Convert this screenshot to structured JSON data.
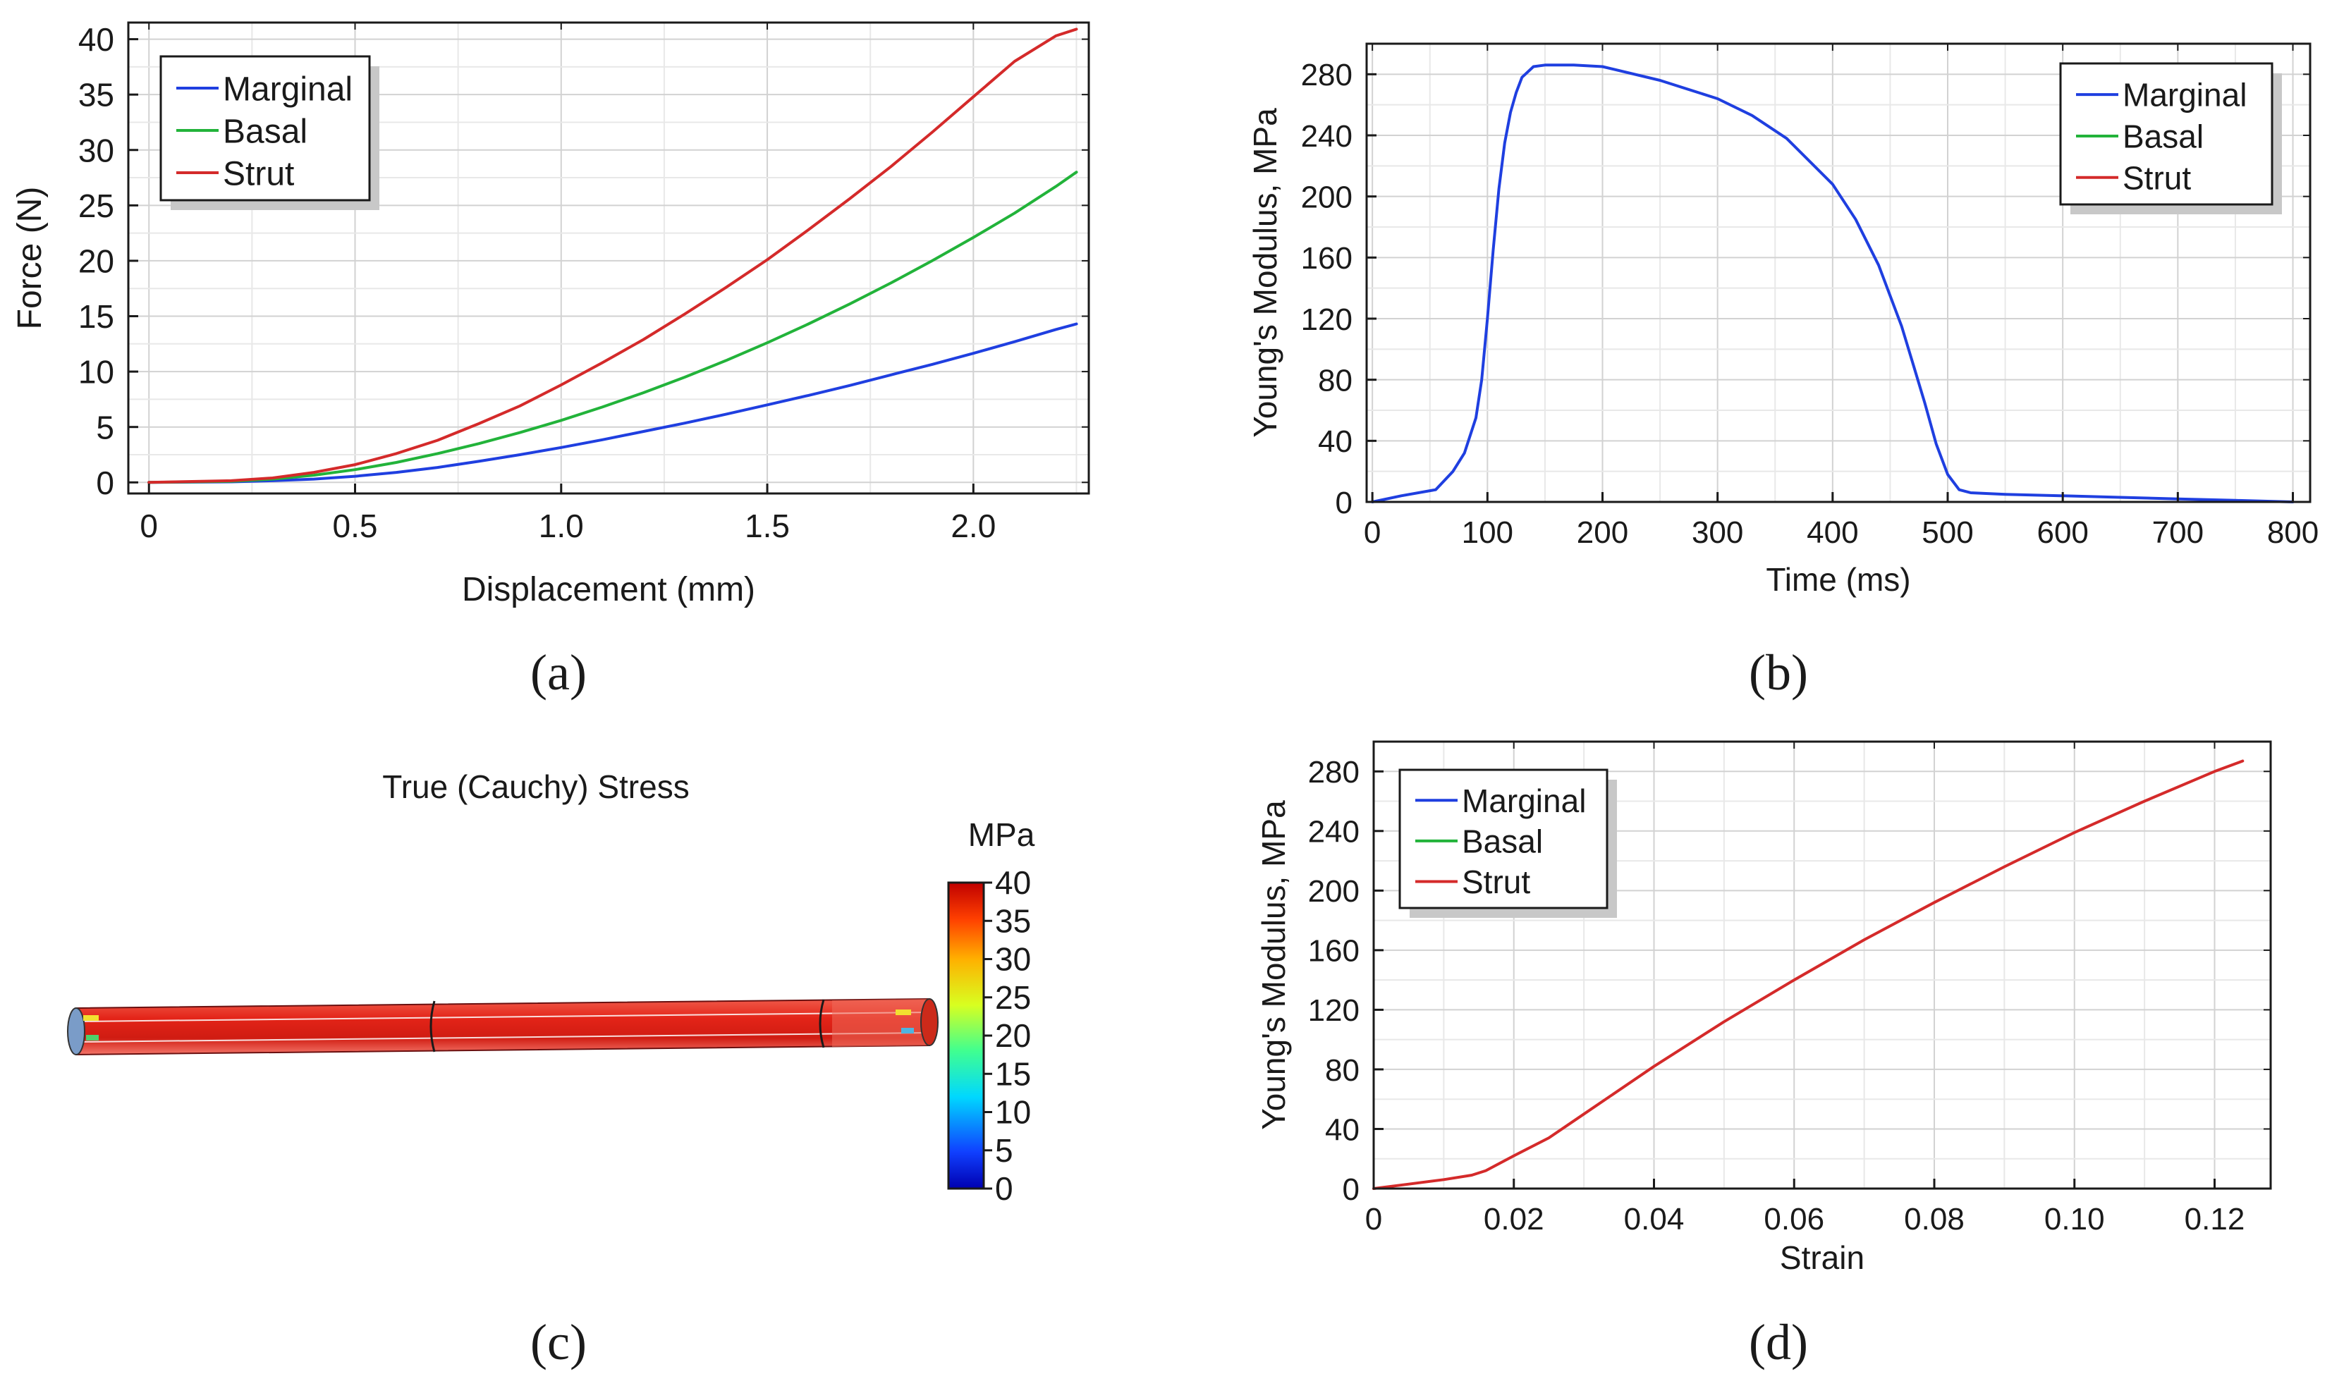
{
  "chart_data": [
    {
      "panel": "(a)",
      "type": "line",
      "title": "",
      "xlabel": "Displacement (mm)",
      "ylabel": "Force (N)",
      "xlim": [
        -0.05,
        2.28
      ],
      "ylim": [
        -1,
        41.5
      ],
      "xticks": [
        0,
        0.5,
        1.0,
        1.5,
        2.0
      ],
      "xtick_labels": [
        "0",
        "0.5",
        "1.0",
        "1.5",
        "2.0"
      ],
      "yticks": [
        0,
        5,
        10,
        15,
        20,
        25,
        30,
        35,
        40
      ],
      "ytick_labels": [
        "0",
        "5",
        "10",
        "15",
        "20",
        "25",
        "30",
        "35",
        "40"
      ],
      "grid": true,
      "legend": [
        "Marginal",
        "Basal",
        "Strut"
      ],
      "legend_position": "top-left",
      "series": [
        {
          "name": "Marginal",
          "color": "#1f3fe0",
          "x": [
            0,
            0.2,
            0.3,
            0.4,
            0.5,
            0.6,
            0.7,
            0.8,
            0.9,
            1.0,
            1.1,
            1.2,
            1.3,
            1.4,
            1.5,
            1.6,
            1.7,
            1.8,
            1.9,
            2.0,
            2.1,
            2.2,
            2.25
          ],
          "y": [
            0,
            0.05,
            0.15,
            0.3,
            0.55,
            0.9,
            1.35,
            1.9,
            2.5,
            3.15,
            3.85,
            4.6,
            5.35,
            6.15,
            7.0,
            7.85,
            8.75,
            9.7,
            10.65,
            11.65,
            12.7,
            13.8,
            14.3
          ]
        },
        {
          "name": "Basal",
          "color": "#22b33a",
          "x": [
            0,
            0.2,
            0.3,
            0.4,
            0.5,
            0.6,
            0.7,
            0.8,
            0.9,
            1.0,
            1.1,
            1.2,
            1.3,
            1.4,
            1.5,
            1.6,
            1.7,
            1.8,
            1.9,
            2.0,
            2.1,
            2.2,
            2.25
          ],
          "y": [
            0,
            0.1,
            0.3,
            0.65,
            1.15,
            1.8,
            2.6,
            3.5,
            4.5,
            5.6,
            6.8,
            8.1,
            9.5,
            11.0,
            12.6,
            14.3,
            16.1,
            18.0,
            20.0,
            22.1,
            24.3,
            26.7,
            28.0
          ]
        },
        {
          "name": "Strut",
          "color": "#d42a2a",
          "x": [
            0,
            0.2,
            0.3,
            0.4,
            0.5,
            0.6,
            0.7,
            0.8,
            0.9,
            1.0,
            1.1,
            1.2,
            1.3,
            1.4,
            1.5,
            1.6,
            1.7,
            1.8,
            1.9,
            2.0,
            2.1,
            2.2,
            2.25
          ],
          "y": [
            0,
            0.15,
            0.4,
            0.9,
            1.6,
            2.6,
            3.8,
            5.3,
            6.9,
            8.8,
            10.8,
            12.9,
            15.2,
            17.6,
            20.1,
            22.8,
            25.6,
            28.5,
            31.6,
            34.8,
            38.0,
            40.3,
            40.9
          ]
        }
      ]
    },
    {
      "panel": "(b)",
      "type": "line",
      "title": "",
      "xlabel": "Time (ms)",
      "ylabel": "Young's Modulus, MPa",
      "xlim": [
        -5,
        815
      ],
      "ylim": [
        0,
        300
      ],
      "xticks": [
        0,
        100,
        200,
        300,
        400,
        500,
        600,
        700,
        800
      ],
      "xtick_labels": [
        "0",
        "100",
        "200",
        "300",
        "400",
        "500",
        "600",
        "700",
        "800"
      ],
      "yticks": [
        0,
        40,
        80,
        120,
        160,
        200,
        240,
        280
      ],
      "ytick_labels": [
        "0",
        "40",
        "80",
        "120",
        "160",
        "200",
        "240",
        "280"
      ],
      "grid": true,
      "legend": [
        "Marginal",
        "Basal",
        "Strut"
      ],
      "legend_position": "top-right",
      "series": [
        {
          "name": "Marginal",
          "color": "#1f3fe0",
          "x": [
            0,
            25,
            55,
            70,
            80,
            90,
            95,
            100,
            105,
            110,
            115,
            120,
            125,
            130,
            140,
            150,
            175,
            200,
            250,
            300,
            330,
            360,
            400,
            420,
            440,
            460,
            470,
            480,
            490,
            500,
            510,
            520,
            550,
            600,
            650,
            700,
            750,
            800
          ],
          "y": [
            0,
            4,
            8,
            20,
            32,
            55,
            80,
            120,
            165,
            205,
            235,
            255,
            268,
            278,
            285,
            286,
            286,
            285,
            276,
            264,
            253,
            238,
            208,
            185,
            155,
            115,
            90,
            65,
            38,
            18,
            8,
            6,
            5,
            4,
            3,
            2,
            1,
            0
          ]
        }
      ]
    },
    {
      "panel": "(c)",
      "type": "heatmap",
      "title": "True (Cauchy) Stress",
      "colorbar_unit": "MPa",
      "colorbar_range": [
        0,
        40
      ],
      "colorbar_ticks": [
        "0",
        "5",
        "10",
        "15",
        "20",
        "25",
        "30",
        "35",
        "40"
      ]
    },
    {
      "panel": "(d)",
      "type": "line",
      "title": "",
      "xlabel": "Strain",
      "ylabel": "Young's Modulus, MPa",
      "xlim": [
        0,
        0.128
      ],
      "ylim": [
        0,
        300
      ],
      "xticks": [
        0,
        0.02,
        0.04,
        0.06,
        0.08,
        0.1,
        0.12
      ],
      "xtick_labels": [
        "0",
        "0.02",
        "0.04",
        "0.06",
        "0.08",
        "0.10",
        "0.12"
      ],
      "yticks": [
        0,
        40,
        80,
        120,
        160,
        200,
        240,
        280
      ],
      "ytick_labels": [
        "0",
        "40",
        "80",
        "120",
        "160",
        "200",
        "240",
        "280"
      ],
      "grid": true,
      "legend": [
        "Marginal",
        "Basal",
        "Strut"
      ],
      "legend_position": "top-left",
      "series": [
        {
          "name": "Strut",
          "color": "#d42a2a",
          "x": [
            0,
            0.005,
            0.01,
            0.014,
            0.016,
            0.02,
            0.025,
            0.03,
            0.04,
            0.05,
            0.06,
            0.07,
            0.08,
            0.09,
            0.1,
            0.11,
            0.12,
            0.124
          ],
          "y": [
            0,
            3,
            6,
            9,
            12,
            22,
            34,
            50,
            82,
            112,
            140,
            167,
            192,
            216,
            239,
            260,
            280,
            287
          ]
        }
      ]
    }
  ],
  "labels": {
    "panel_a": "(a)",
    "panel_b": "(b)",
    "panel_c": "(c)",
    "panel_d": "(d)"
  }
}
